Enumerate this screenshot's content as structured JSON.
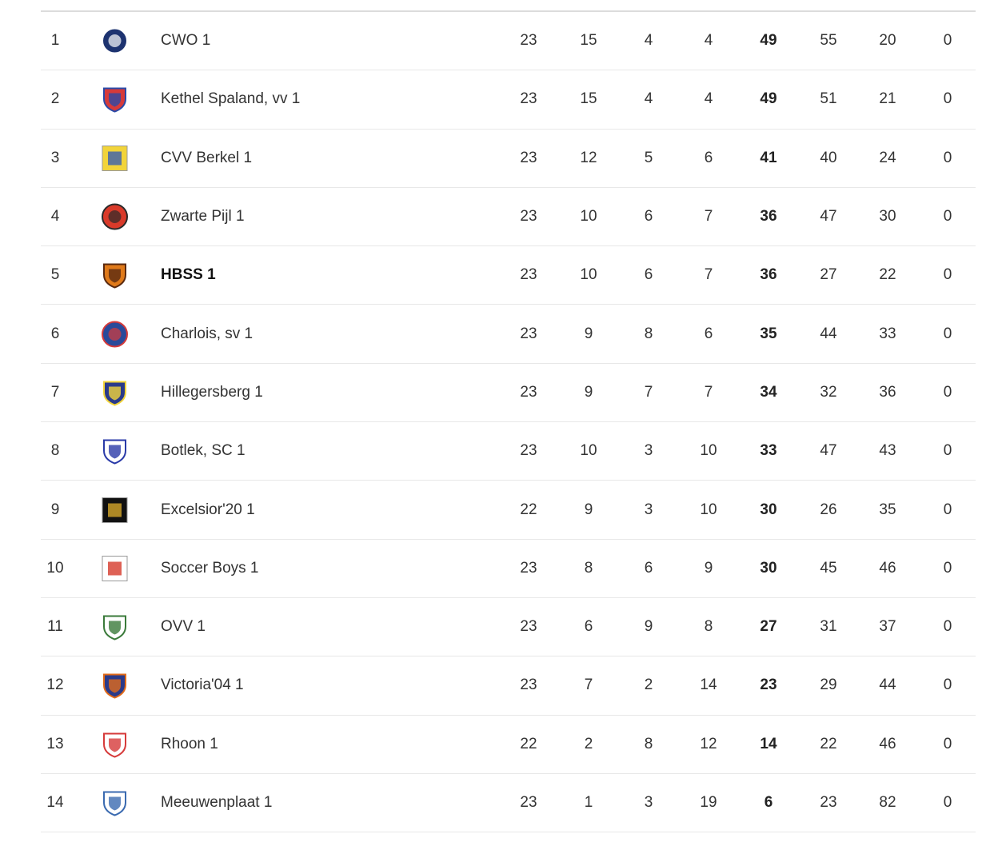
{
  "standings": [
    {
      "rank": "1",
      "team": "CWO 1",
      "logo": "cwo-logo",
      "colors": [
        "#1d3370",
        "#ffffff"
      ],
      "shape": "circle",
      "p": "23",
      "w": "15",
      "d": "4",
      "l": "4",
      "pts": "49",
      "gf": "55",
      "ga": "20",
      "pen": "0"
    },
    {
      "rank": "2",
      "team": "Kethel Spaland, vv 1",
      "logo": "kethel-logo",
      "colors": [
        "#d63a3a",
        "#2a4aa8"
      ],
      "shape": "shield",
      "p": "23",
      "w": "15",
      "d": "4",
      "l": "4",
      "pts": "49",
      "gf": "51",
      "ga": "21",
      "pen": "0"
    },
    {
      "rank": "3",
      "team": "CVV Berkel 1",
      "logo": "cvv-berkel-logo",
      "colors": [
        "#f2d43a",
        "#3a5fb0"
      ],
      "shape": "square",
      "p": "23",
      "w": "12",
      "d": "5",
      "l": "6",
      "pts": "41",
      "gf": "40",
      "ga": "24",
      "pen": "0"
    },
    {
      "rank": "4",
      "team": "Zwarte Pijl 1",
      "logo": "zwarte-pijl-logo",
      "colors": [
        "#d93a2a",
        "#2a2a2a"
      ],
      "shape": "circle",
      "p": "23",
      "w": "10",
      "d": "6",
      "l": "7",
      "pts": "36",
      "gf": "47",
      "ga": "30",
      "pen": "0"
    },
    {
      "rank": "5",
      "team": "HBSS 1",
      "logo": "hbss-logo",
      "colors": [
        "#e07a1a",
        "#5a2a10"
      ],
      "shape": "shield",
      "highlight": true,
      "p": "23",
      "w": "10",
      "d": "6",
      "l": "7",
      "pts": "36",
      "gf": "27",
      "ga": "22",
      "pen": "0"
    },
    {
      "rank": "6",
      "team": "Charlois, sv 1",
      "logo": "charlois-logo",
      "colors": [
        "#2a4a9a",
        "#d63a3a"
      ],
      "shape": "circle",
      "p": "23",
      "w": "9",
      "d": "8",
      "l": "6",
      "pts": "35",
      "gf": "44",
      "ga": "33",
      "pen": "0"
    },
    {
      "rank": "7",
      "team": "Hillegersberg 1",
      "logo": "hillegersberg-logo",
      "colors": [
        "#2a3a8a",
        "#f2d43a"
      ],
      "shape": "shield",
      "p": "23",
      "w": "9",
      "d": "7",
      "l": "7",
      "pts": "34",
      "gf": "32",
      "ga": "36",
      "pen": "0"
    },
    {
      "rank": "8",
      "team": "Botlek, SC 1",
      "logo": "botlek-logo",
      "colors": [
        "#ffffff",
        "#2a3aa8"
      ],
      "shape": "shield",
      "p": "23",
      "w": "10",
      "d": "3",
      "l": "10",
      "pts": "33",
      "gf": "47",
      "ga": "43",
      "pen": "0"
    },
    {
      "rank": "9",
      "team": "Excelsior'20 1",
      "logo": "excelsior20-logo",
      "colors": [
        "#111111",
        "#d4a62a"
      ],
      "shape": "square",
      "p": "22",
      "w": "9",
      "d": "3",
      "l": "10",
      "pts": "30",
      "gf": "26",
      "ga": "35",
      "pen": "0"
    },
    {
      "rank": "10",
      "team": "Soccer Boys 1",
      "logo": "soccer-boys-logo",
      "colors": [
        "#ffffff",
        "#d63a2a"
      ],
      "shape": "square",
      "p": "23",
      "w": "8",
      "d": "6",
      "l": "9",
      "pts": "30",
      "gf": "45",
      "ga": "46",
      "pen": "0"
    },
    {
      "rank": "11",
      "team": "OVV 1",
      "logo": "ovv-logo",
      "colors": [
        "#ffffff",
        "#3a7a3a"
      ],
      "shape": "shield",
      "p": "23",
      "w": "6",
      "d": "9",
      "l": "8",
      "pts": "27",
      "gf": "31",
      "ga": "37",
      "pen": "0"
    },
    {
      "rank": "12",
      "team": "Victoria'04 1",
      "logo": "victoria04-logo",
      "colors": [
        "#2a3a8a",
        "#e06a1a"
      ],
      "shape": "shield",
      "p": "23",
      "w": "7",
      "d": "2",
      "l": "14",
      "pts": "23",
      "gf": "29",
      "ga": "44",
      "pen": "0"
    },
    {
      "rank": "13",
      "team": "Rhoon 1",
      "logo": "rhoon-logo",
      "colors": [
        "#ffffff",
        "#d63a3a"
      ],
      "shape": "shield",
      "p": "22",
      "w": "2",
      "d": "8",
      "l": "12",
      "pts": "14",
      "gf": "22",
      "ga": "46",
      "pen": "0"
    },
    {
      "rank": "14",
      "team": "Meeuwenplaat 1",
      "logo": "meeuwenplaat-logo",
      "colors": [
        "#ffffff",
        "#3a6ab0"
      ],
      "shape": "shield",
      "p": "23",
      "w": "1",
      "d": "3",
      "l": "19",
      "pts": "6",
      "gf": "23",
      "ga": "82",
      "pen": "0"
    }
  ]
}
